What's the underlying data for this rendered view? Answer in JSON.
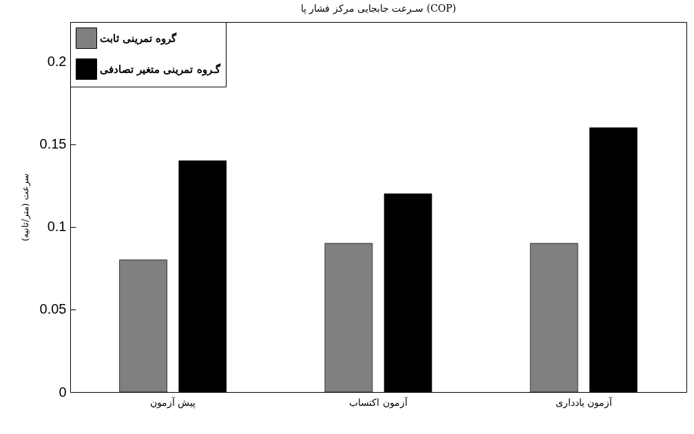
{
  "chart_data": {
    "type": "bar",
    "title": "سـرعت جابجایی مرکز فشار پا (COP)",
    "ylabel": "سرعت (متر/ثانیه)",
    "categories": [
      "پیش آزمون",
      "آزمون اکتساب",
      "آزمون یادداری"
    ],
    "series": [
      {
        "name": "گروه تمرینی ثابت",
        "color": "#808080",
        "values": [
          0.08,
          0.09,
          0.09
        ]
      },
      {
        "name": "گـروه تمرینی متغیر تصادفی",
        "color": "#000000",
        "values": [
          0.14,
          0.12,
          0.16
        ]
      }
    ],
    "ylim": [
      0,
      0.224
    ],
    "yticks": [
      0,
      0.05,
      0.1,
      0.15,
      0.2
    ],
    "grid": false,
    "legend": "top left"
  }
}
